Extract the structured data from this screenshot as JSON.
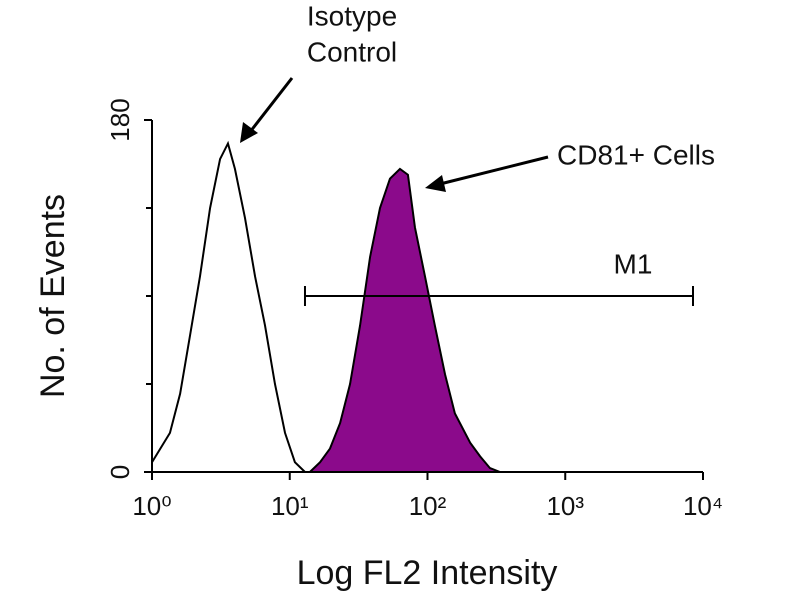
{
  "chart_data": {
    "type": "line",
    "xscale": "log",
    "xlabel": "Log FL2 Intensity",
    "ylabel": "No. of Events",
    "xlim": [
      1,
      10000
    ],
    "ylim": [
      0,
      180
    ],
    "xticks": [
      {
        "value": 1,
        "label": "10⁰"
      },
      {
        "value": 10,
        "label": "10¹"
      },
      {
        "value": 100,
        "label": "10²"
      },
      {
        "value": 1000,
        "label": "10³"
      },
      {
        "value": 10000,
        "label": "10⁴"
      }
    ],
    "yticks": [
      0,
      180
    ],
    "yminor_ticks": [
      45,
      90,
      135
    ],
    "series": [
      {
        "color": "#000000",
        "fill": "none",
        "x": [
          1,
          1.35,
          1.6,
          1.89,
          2.23,
          2.64,
          3.12,
          3.56,
          4.0,
          4.73,
          5.6,
          6.61,
          7.81,
          9.24,
          10.9,
          12.9
        ],
        "values": [
          5,
          20,
          40,
          70,
          100,
          135,
          160,
          168,
          155,
          130,
          100,
          75,
          45,
          20,
          5,
          0
        ]
      },
      {
        "color": "#000000",
        "fill": "#8b0a8b",
        "x": [
          14.0,
          16.6,
          19.6,
          23.2,
          27.4,
          32.4,
          38.3,
          45.2,
          53.4,
          63.1,
          72.1,
          81.1,
          95.9,
          113,
          134,
          158,
          204,
          241,
          284,
          336
        ],
        "values": [
          0,
          5,
          12,
          25,
          45,
          75,
          110,
          135,
          150,
          155,
          152,
          125,
          100,
          75,
          50,
          30,
          15,
          8,
          2,
          0
        ]
      }
    ],
    "markers": [
      {
        "label": "M1",
        "x": [
          12.9,
          8460
        ],
        "y": 90
      }
    ],
    "annotations": [
      {
        "lines": [
          "Isotype",
          "Control"
        ]
      },
      {
        "lines": [
          "CD81+ Cells"
        ]
      }
    ]
  }
}
